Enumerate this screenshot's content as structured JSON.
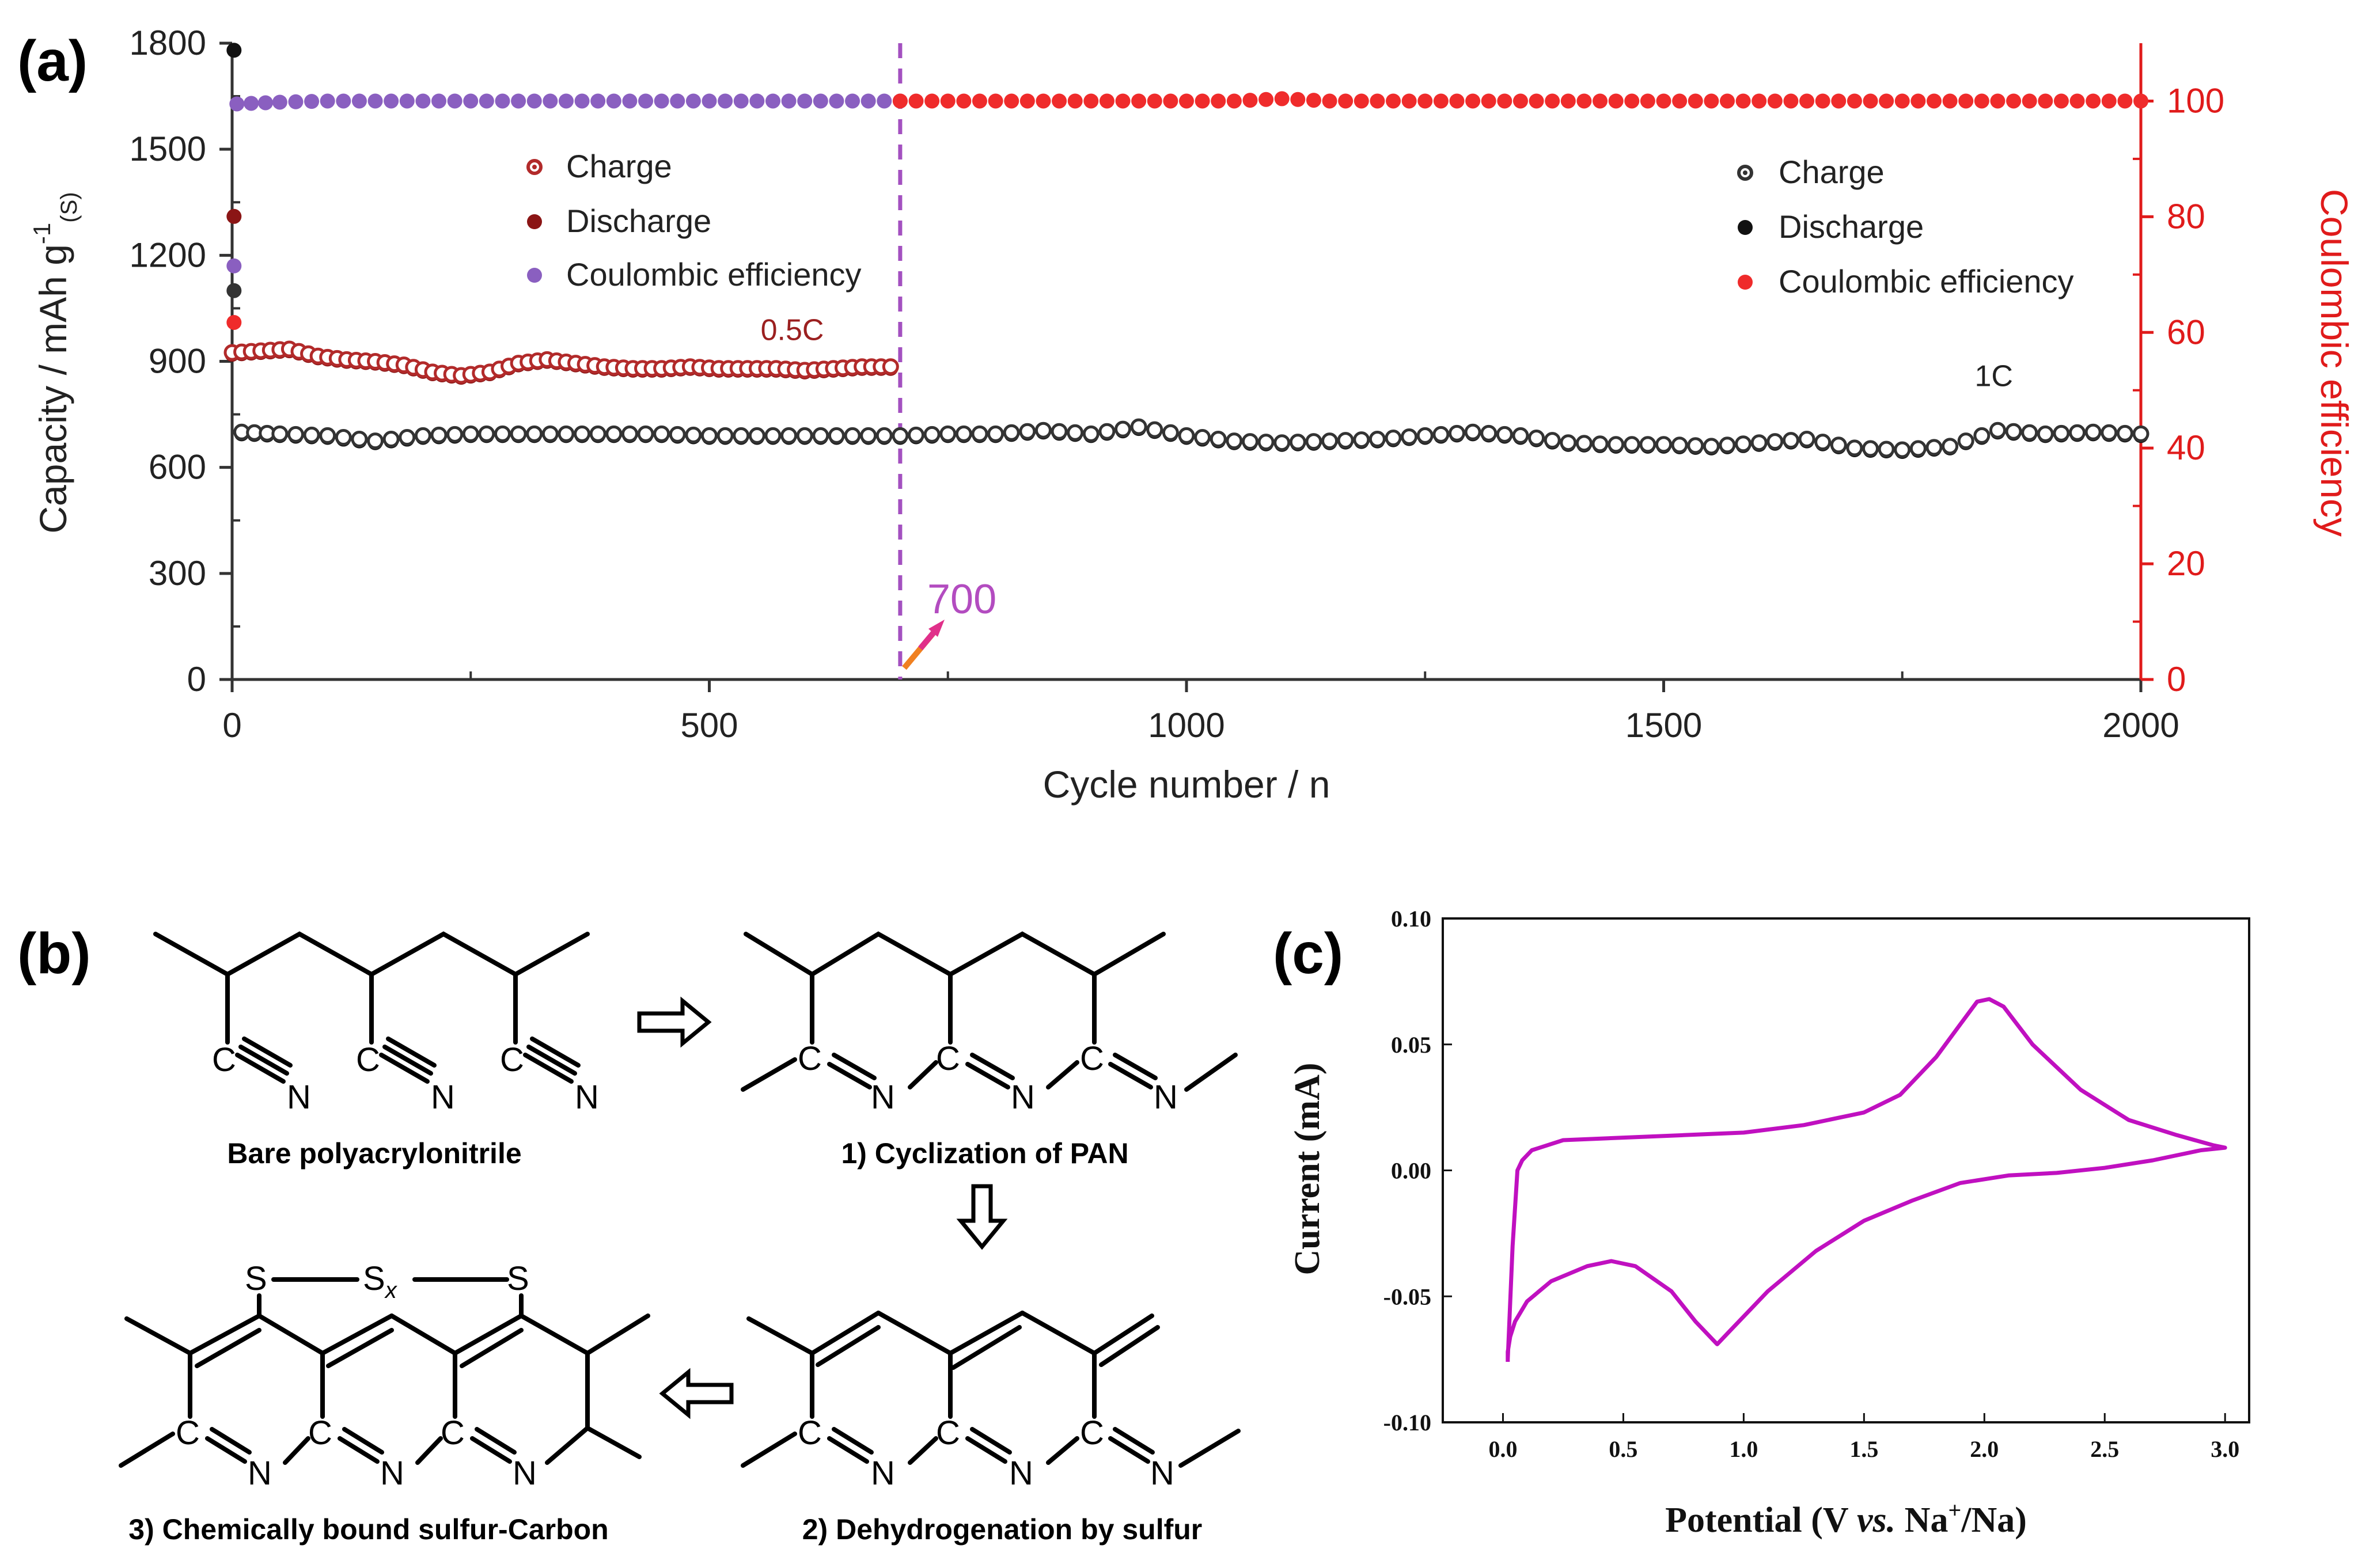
{
  "panels": {
    "a": "(a)",
    "b": "(b)",
    "c": "(c)"
  },
  "chart_data": [
    {
      "type": "scatter",
      "panel": "(a)",
      "xlabel": "Cycle number / n",
      "ylabel_left": "Capacity / mAh g-1(S)",
      "ylabel_left_main": "Capacity / mAh g",
      "ylabel_left_sup": "-1",
      "ylabel_left_sub": "(S)",
      "ylabel_right": "Coulombic efficiency",
      "xlim": [
        0,
        2000
      ],
      "ylim_left": [
        0,
        1800
      ],
      "ylim_right": [
        0,
        110
      ],
      "xticks": [
        "0",
        "500",
        "1000",
        "1500",
        "2000"
      ],
      "yticks_left": [
        "0",
        "300",
        "600",
        "900",
        "1200",
        "1500",
        "1800"
      ],
      "yticks_right": [
        "0",
        "20",
        "40",
        "60",
        "80",
        "100"
      ],
      "divider_x": 700,
      "divider_label": "700",
      "rate_labels": [
        {
          "text": "0.5C",
          "x": 590,
          "y": 960
        },
        {
          "text": "1C",
          "x": 1850,
          "y": 830
        }
      ],
      "colors": {
        "charge_05": "#b22a2a",
        "discharge_05": "#8b1515",
        "ce_05": "#8a5fc0",
        "charge_1": "#333333",
        "discharge_1": "#111111",
        "ce_1": "#ef2b2b",
        "divider": "#a350c0",
        "right_axis": "#e01b1b"
      },
      "legend_05C": [
        "Charge",
        "Discharge",
        "Coulombic efficiency"
      ],
      "legend_1C": [
        "Charge",
        "Discharge",
        "Coulombic efficiency"
      ],
      "series": [
        {
          "name": "Charge (0.5C)",
          "axis": "left",
          "x": [
            0,
            30,
            60,
            90,
            120,
            150,
            180,
            210,
            240,
            270,
            300,
            330,
            360,
            390,
            420,
            450,
            480,
            510,
            540,
            570,
            600,
            630,
            660,
            690
          ],
          "y": [
            925,
            930,
            935,
            915,
            905,
            900,
            890,
            870,
            860,
            870,
            895,
            905,
            895,
            885,
            880,
            880,
            885,
            880,
            880,
            880,
            875,
            880,
            885,
            885
          ]
        },
        {
          "name": "Discharge (0.5C)",
          "axis": "left",
          "x": [
            0,
            30,
            60,
            90,
            120,
            150,
            180,
            210,
            240,
            270,
            300,
            330,
            360,
            390,
            420,
            450,
            480,
            510,
            540,
            570,
            600,
            630,
            660,
            690
          ],
          "y": [
            920,
            925,
            930,
            910,
            900,
            895,
            885,
            865,
            855,
            865,
            890,
            900,
            890,
            880,
            875,
            875,
            880,
            875,
            875,
            875,
            870,
            875,
            880,
            880
          ]
        },
        {
          "name": "Coulombic efficiency (0.5C)",
          "axis": "right",
          "x": [
            5,
            50,
            100,
            150,
            200,
            250,
            300,
            350,
            400,
            450,
            500,
            550,
            600,
            650,
            700
          ],
          "y": [
            99.5,
            99.8,
            100,
            100,
            100,
            100,
            100,
            100,
            100,
            100,
            100,
            100,
            100,
            100,
            100
          ]
        },
        {
          "name": "Charge (1C)",
          "axis": "left",
          "x": [
            10,
            50,
            100,
            150,
            200,
            250,
            300,
            350,
            400,
            450,
            500,
            550,
            600,
            650,
            700,
            750,
            800,
            850,
            900,
            950,
            1000,
            1050,
            1100,
            1150,
            1200,
            1250,
            1300,
            1350,
            1400,
            1450,
            1500,
            1550,
            1600,
            1650,
            1700,
            1750,
            1800,
            1850,
            1900,
            1950,
            2000
          ],
          "y": [
            700,
            695,
            690,
            675,
            690,
            695,
            695,
            695,
            695,
            695,
            690,
            690,
            690,
            690,
            690,
            695,
            695,
            705,
            695,
            715,
            690,
            675,
            670,
            675,
            680,
            690,
            700,
            690,
            670,
            665,
            665,
            660,
            670,
            680,
            655,
            650,
            660,
            705,
            695,
            700,
            695
          ]
        },
        {
          "name": "Discharge (1C)",
          "axis": "left",
          "x": [
            10,
            50,
            100,
            150,
            200,
            250,
            300,
            350,
            400,
            450,
            500,
            550,
            600,
            650,
            700,
            750,
            800,
            850,
            900,
            950,
            1000,
            1050,
            1100,
            1150,
            1200,
            1250,
            1300,
            1350,
            1400,
            1450,
            1500,
            1550,
            1600,
            1650,
            1700,
            1750,
            1800,
            1850,
            1900,
            1950,
            2000
          ],
          "y": [
            695,
            690,
            685,
            670,
            685,
            690,
            690,
            690,
            690,
            690,
            685,
            685,
            685,
            685,
            685,
            690,
            690,
            700,
            690,
            710,
            685,
            670,
            665,
            670,
            675,
            685,
            695,
            685,
            665,
            660,
            660,
            655,
            665,
            675,
            650,
            645,
            655,
            700,
            690,
            695,
            690
          ]
        },
        {
          "name": "Coulombic efficiency (1C)",
          "axis": "right",
          "x": [
            700,
            750,
            800,
            850,
            900,
            950,
            1000,
            1050,
            1100,
            1150,
            1200,
            1250,
            1300,
            1350,
            1400,
            1450,
            1500,
            1550,
            1600,
            1650,
            1700,
            1750,
            1800,
            1850,
            1900,
            1950,
            2000
          ],
          "y": [
            100,
            100,
            100,
            100,
            100,
            100,
            100,
            100,
            100.4,
            100,
            100,
            100,
            100,
            100,
            100,
            100,
            100,
            100,
            100,
            100,
            100,
            100,
            100,
            100,
            100,
            100,
            100
          ]
        }
      ],
      "initial_points": [
        {
          "series": "Discharge",
          "x": 2,
          "y": 1780,
          "color": "#111111"
        },
        {
          "series": "Charge",
          "x": 2,
          "y": 1100,
          "color": "#333333"
        },
        {
          "series": "Discharge (0.5C)",
          "x": 2,
          "y": 1310,
          "color": "#8b1515"
        },
        {
          "series": "Coulombic efficiency (0.5C)",
          "x": 2,
          "y": 1170,
          "color": "#8a5fc0"
        },
        {
          "series": "Coulombic efficiency (1C)",
          "x": 2,
          "y": 1010,
          "color": "#ef2b2b"
        }
      ]
    },
    {
      "type": "line",
      "panel": "(c)",
      "xlabel": "Potential (V vs. Na+/Na)",
      "xlabel_parts": {
        "pre": "Potential (V ",
        "vs": "vs.",
        "na": " Na",
        "sup": "+",
        "post": "/Na)"
      },
      "ylabel": "Current (mA)",
      "xlim": [
        -0.25,
        3.1
      ],
      "ylim": [
        -0.1,
        0.1
      ],
      "xticks": [
        "0.0",
        "0.5",
        "1.0",
        "1.5",
        "2.0",
        "2.5",
        "3.0"
      ],
      "yticks": [
        "-0.10",
        "-0.05",
        "0.00",
        "0.05",
        "0.10"
      ],
      "color": "#c010c0",
      "series": [
        {
          "name": "CV curve",
          "x": [
            0.02,
            0.04,
            0.06,
            0.08,
            0.12,
            0.25,
            0.5,
            0.75,
            1.0,
            1.25,
            1.5,
            1.65,
            1.8,
            1.9,
            1.97,
            2.02,
            2.08,
            2.2,
            2.4,
            2.6,
            2.8,
            2.95,
            3.0,
            2.9,
            2.7,
            2.5,
            2.3,
            2.1,
            1.9,
            1.7,
            1.5,
            1.3,
            1.1,
            0.95,
            0.89,
            0.8,
            0.7,
            0.55,
            0.45,
            0.35,
            0.2,
            0.1,
            0.05,
            0.03,
            0.02,
            0.02,
            0.02
          ],
          "y": [
            -0.075,
            -0.03,
            0.0,
            0.004,
            0.008,
            0.012,
            0.013,
            0.014,
            0.015,
            0.018,
            0.023,
            0.03,
            0.045,
            0.058,
            0.067,
            0.068,
            0.065,
            0.05,
            0.032,
            0.02,
            0.014,
            0.01,
            0.009,
            0.008,
            0.004,
            0.001,
            -0.001,
            -0.002,
            -0.005,
            -0.012,
            -0.02,
            -0.032,
            -0.048,
            -0.063,
            -0.069,
            -0.06,
            -0.048,
            -0.038,
            -0.036,
            -0.038,
            -0.044,
            -0.052,
            -0.06,
            -0.066,
            -0.072,
            -0.074,
            -0.076
          ]
        }
      ]
    }
  ],
  "scheme_b": {
    "captions": [
      "Bare polyacrylonitrile",
      "1) Cyclization of PAN",
      "2) Dehydrogenation by sulfur",
      "3) Chemically bound sulfur-Carbon"
    ],
    "atoms": {
      "C": "C",
      "N": "N",
      "S": "S",
      "Sx_main": "S",
      "Sx_sub": "x"
    }
  }
}
